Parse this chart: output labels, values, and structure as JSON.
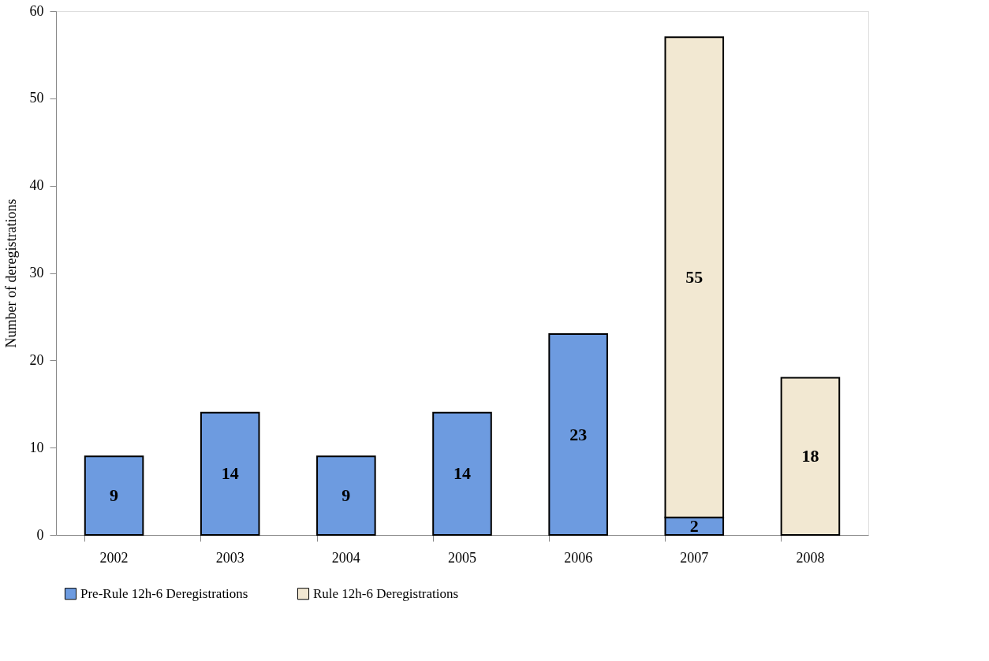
{
  "chart_data": {
    "type": "bar",
    "stacked": true,
    "ylabel": "Number of deregistrations",
    "categories": [
      "2002",
      "2003",
      "2004",
      "2005",
      "2006",
      "2007",
      "2008"
    ],
    "series": [
      {
        "name": "Pre-Rule 12h-6 Deregistrations",
        "color": "#6d9be0",
        "values": [
          9,
          14,
          9,
          14,
          23,
          2,
          null
        ]
      },
      {
        "name": "Rule 12h-6 Deregistrations",
        "color": "#f2e8d2",
        "values": [
          null,
          null,
          null,
          null,
          null,
          55,
          18
        ]
      }
    ],
    "ylim": [
      0,
      60
    ],
    "yticks": [
      0,
      10,
      20,
      30,
      40,
      50,
      60
    ],
    "grid": false,
    "legend": "bottom",
    "data_labels": true
  }
}
